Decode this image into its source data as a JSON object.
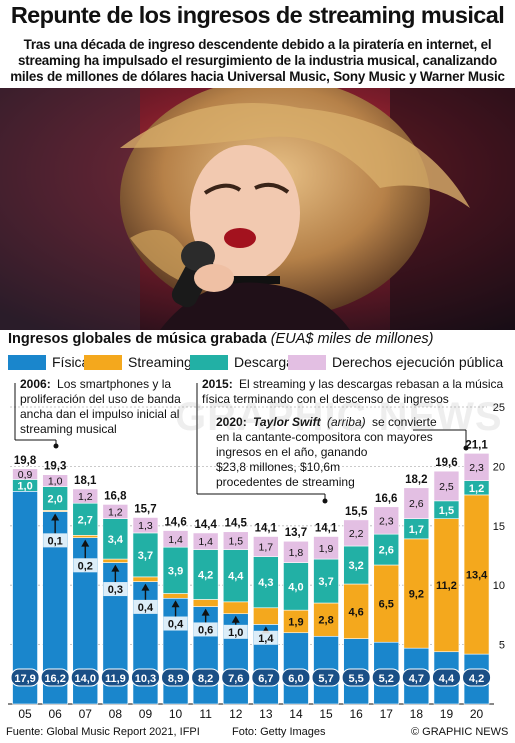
{
  "title": "Repunte de los ingresos de streaming musical",
  "subtitle": "Tras una década de ingreso descendente debido a la piratería en internet, el streaming ha impulsado el resurgimiento de la industria musical, canalizando miles de millones de dólares hacia Universal Music, Sony Music y Warner Music",
  "photo_description_icon": "singer-photo-icon",
  "colors": {
    "fisica": "#1a86cc",
    "streaming": "#f4a81d",
    "descargas": "#22b0a5",
    "derechos": "#e3bfe3"
  },
  "chart_data": {
    "type": "bar",
    "title_bold": "Ingresos globales de música grabada",
    "title_unit": "(EUA$ miles de millones)",
    "categories": [
      "05",
      "06",
      "07",
      "08",
      "09",
      "10",
      "11",
      "12",
      "13",
      "14",
      "15",
      "16",
      "17",
      "18",
      "19",
      "20"
    ],
    "series": [
      {
        "name": "Física",
        "values": [
          17.9,
          16.2,
          14.0,
          11.9,
          10.3,
          8.9,
          8.2,
          7.6,
          6.7,
          6.0,
          5.7,
          5.5,
          5.2,
          4.7,
          4.4,
          4.2
        ]
      },
      {
        "name": "Streaming",
        "values": [
          0,
          0.1,
          0.2,
          0.3,
          0.4,
          0.4,
          0.6,
          1.0,
          1.4,
          1.9,
          2.8,
          4.6,
          6.5,
          9.2,
          11.2,
          13.4
        ]
      },
      {
        "name": "Descargas",
        "values": [
          1.0,
          2.0,
          2.7,
          3.4,
          3.7,
          3.9,
          4.2,
          4.4,
          4.3,
          4.0,
          3.7,
          3.2,
          2.6,
          1.7,
          1.5,
          1.2
        ]
      },
      {
        "name": "Derechos ejecución pública",
        "values": [
          0.9,
          1.0,
          1.2,
          1.2,
          1.3,
          1.4,
          1.4,
          1.5,
          1.7,
          1.8,
          1.9,
          2.2,
          2.3,
          2.6,
          2.5,
          2.3
        ]
      }
    ],
    "totals": [
      19.8,
      19.3,
      18.1,
      16.8,
      15.7,
      14.6,
      14.4,
      14.5,
      14.1,
      13.7,
      14.1,
      15.5,
      16.6,
      18.2,
      19.6,
      21.1
    ],
    "value_labels": {
      "fisica": [
        "17,9",
        "16,2",
        "14,0",
        "11,9",
        "10,3",
        "8,9",
        "8,2",
        "7,6",
        "6,7",
        "6,0",
        "5,7",
        "5,5",
        "5,2",
        "4,7",
        "4,4",
        "4,2"
      ],
      "streaming": [
        "",
        "0,1",
        "0,2",
        "0,3",
        "0,4",
        "0,4",
        "0,6",
        "1,0",
        "1,4",
        "1,9",
        "2,8",
        "4,6",
        "6,5",
        "9,2",
        "11,2",
        "13,4"
      ],
      "descargas": [
        "1,0",
        "2,0",
        "2,7",
        "3,4",
        "3,7",
        "3,9",
        "4,2",
        "4,4",
        "4,3",
        "4,0",
        "3,7",
        "3,2",
        "2,6",
        "1,7",
        "1,5",
        "1,2"
      ],
      "derechos": [
        "0,9",
        "1,0",
        "1,2",
        "1,2",
        "1,3",
        "1,4",
        "1,4",
        "1,5",
        "1,7",
        "1,8",
        "1,9",
        "2,2",
        "2,3",
        "2,6",
        "2,5",
        "2,3"
      ],
      "totals": [
        "19,8",
        "19,3",
        "18,1",
        "16,8",
        "15,7",
        "14,6",
        "14,4",
        "14,5",
        "14,1",
        "13,7",
        "14,1",
        "15,5",
        "16,6",
        "18,2",
        "19,6",
        "21,1"
      ]
    },
    "yticks": [
      "5",
      "10",
      "15",
      "20",
      "25"
    ],
    "ylim": [
      0,
      26
    ],
    "stacked": true
  },
  "legend": {
    "fisica": "Física",
    "streaming": "Streaming",
    "descargas": "Descargas",
    "derechos": "Derechos ejecución pública"
  },
  "annotations": {
    "a2006_year": "2006:",
    "a2006_lines": [
      "Los smartphones y la",
      "proliferación del uso de banda",
      "ancha dan el impulso inicial al",
      "streaming musical"
    ],
    "a2015_year": "2015:",
    "a2015_lines": [
      "El streaming y las descargas rebasan a la música",
      "física terminando con el descenso de ingresos"
    ],
    "a2020_year": "2020:",
    "a2020_name": "Taylor Swift",
    "a2020_paren": "(arriba)",
    "a2020_line1_rest": "se convierte",
    "a2020_lines": [
      "en la cantante-compositora con mayores",
      "ingresos en el año, ganando",
      "$23,8 millones, $10,6m",
      "procedentes de streaming"
    ]
  },
  "watermark": "GRAPHIC NEWS",
  "footer": {
    "source": "Fuente: Global Music Report 2021, IFPI",
    "photo": "Foto: Getty Images",
    "copyright": "© GRAPHIC NEWS"
  }
}
